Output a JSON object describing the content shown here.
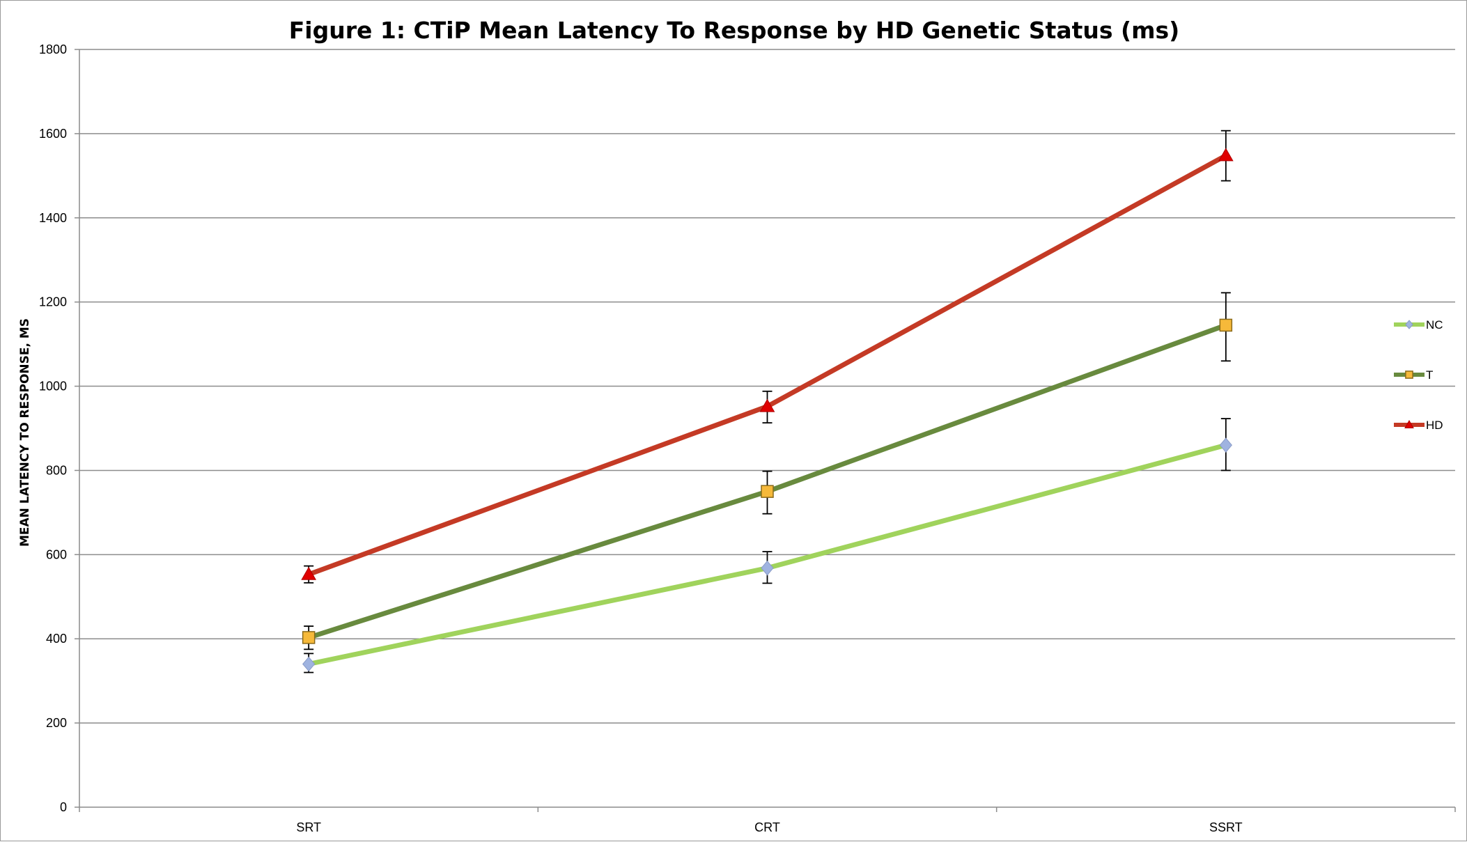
{
  "chart_data": {
    "type": "line",
    "title": "Figure 1: CTiP Mean Latency To Response by HD Genetic Status (ms)",
    "xlabel": "",
    "ylabel": "MEAN LATENCY TO RESPONSE, MS",
    "categories": [
      "SRT",
      "CRT",
      "SSRT"
    ],
    "ylim": [
      0,
      1800
    ],
    "yticks": [
      0,
      200,
      400,
      600,
      800,
      1000,
      1200,
      1400,
      1600,
      1800
    ],
    "grid": true,
    "legend_position": "right",
    "series": [
      {
        "name": "NC",
        "values": [
          340,
          568,
          860
        ],
        "error_low": [
          320,
          532,
          800
        ],
        "error_high": [
          365,
          607,
          923
        ],
        "line_color": "#a0d35c",
        "marker": "diamond",
        "marker_color": "#9fb3e0"
      },
      {
        "name": "T",
        "values": [
          403,
          750,
          1145
        ],
        "error_low": [
          375,
          697,
          1060
        ],
        "error_high": [
          430,
          798,
          1222
        ],
        "line_color": "#688a3e",
        "marker": "square",
        "marker_color": "#f6b93a"
      },
      {
        "name": "HD",
        "values": [
          553,
          952,
          1548
        ],
        "error_low": [
          533,
          913,
          1488
        ],
        "error_high": [
          573,
          988,
          1607
        ],
        "line_color": "#c43a25",
        "marker": "triangle",
        "marker_color": "#e00000"
      }
    ]
  }
}
